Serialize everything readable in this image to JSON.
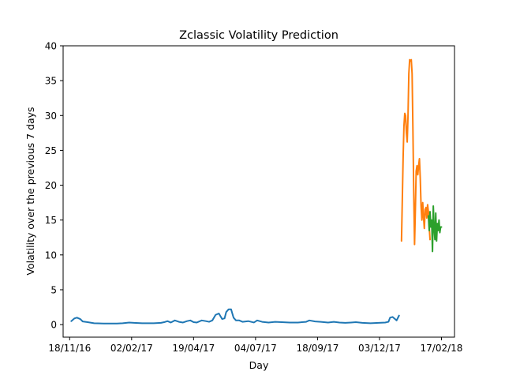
{
  "chart_data": {
    "type": "line",
    "title": "Zclassic Volatility Prediction",
    "xlabel": "Day",
    "ylabel": "Volatility over the previous 7 days",
    "xlim": [
      "2016-11-10",
      "2018-03-05"
    ],
    "ylim": [
      -1.8,
      40
    ],
    "x_ticks": [
      "2016-11-18",
      "2017-02-02",
      "2017-04-19",
      "2017-07-04",
      "2017-09-18",
      "2017-12-03",
      "2018-02-17"
    ],
    "x_tick_labels": [
      "18/11/16",
      "02/02/17",
      "19/04/17",
      "04/07/17",
      "18/09/17",
      "03/12/17",
      "17/02/18"
    ],
    "y_ticks": [
      0,
      5,
      10,
      15,
      20,
      25,
      30,
      35,
      40
    ],
    "y_tick_labels": [
      "0",
      "5",
      "10",
      "15",
      "20",
      "25",
      "30",
      "35",
      "40"
    ],
    "grid": false,
    "series": [
      {
        "color": "#1f77b4",
        "points": [
          [
            "2016-11-20",
            0.5
          ],
          [
            "2016-11-24",
            0.9
          ],
          [
            "2016-11-27",
            1.0
          ],
          [
            "2016-12-01",
            0.8
          ],
          [
            "2016-12-04",
            0.45
          ],
          [
            "2016-12-10",
            0.35
          ],
          [
            "2016-12-18",
            0.2
          ],
          [
            "2016-12-30",
            0.15
          ],
          [
            "2017-01-15",
            0.15
          ],
          [
            "2017-01-22",
            0.2
          ],
          [
            "2017-01-30",
            0.3
          ],
          [
            "2017-02-05",
            0.25
          ],
          [
            "2017-02-15",
            0.2
          ],
          [
            "2017-03-01",
            0.2
          ],
          [
            "2017-03-10",
            0.25
          ],
          [
            "2017-03-14",
            0.35
          ],
          [
            "2017-03-18",
            0.5
          ],
          [
            "2017-03-22",
            0.3
          ],
          [
            "2017-03-27",
            0.6
          ],
          [
            "2017-04-01",
            0.4
          ],
          [
            "2017-04-06",
            0.3
          ],
          [
            "2017-04-11",
            0.5
          ],
          [
            "2017-04-15",
            0.6
          ],
          [
            "2017-04-19",
            0.35
          ],
          [
            "2017-04-23",
            0.3
          ],
          [
            "2017-04-29",
            0.6
          ],
          [
            "2017-05-04",
            0.5
          ],
          [
            "2017-05-08",
            0.4
          ],
          [
            "2017-05-12",
            0.6
          ],
          [
            "2017-05-16",
            1.4
          ],
          [
            "2017-05-20",
            1.6
          ],
          [
            "2017-05-24",
            0.8
          ],
          [
            "2017-05-27",
            0.9
          ],
          [
            "2017-05-29",
            1.8
          ],
          [
            "2017-06-01",
            2.2
          ],
          [
            "2017-06-04",
            2.2
          ],
          [
            "2017-06-07",
            1.0
          ],
          [
            "2017-06-10",
            0.6
          ],
          [
            "2017-06-14",
            0.6
          ],
          [
            "2017-06-18",
            0.4
          ],
          [
            "2017-06-25",
            0.5
          ],
          [
            "2017-07-02",
            0.3
          ],
          [
            "2017-07-06",
            0.6
          ],
          [
            "2017-07-12",
            0.4
          ],
          [
            "2017-07-20",
            0.3
          ],
          [
            "2017-07-28",
            0.4
          ],
          [
            "2017-08-05",
            0.35
          ],
          [
            "2017-08-15",
            0.3
          ],
          [
            "2017-08-25",
            0.3
          ],
          [
            "2017-09-04",
            0.4
          ],
          [
            "2017-09-08",
            0.6
          ],
          [
            "2017-09-15",
            0.45
          ],
          [
            "2017-09-22",
            0.4
          ],
          [
            "2017-10-01",
            0.3
          ],
          [
            "2017-10-08",
            0.4
          ],
          [
            "2017-10-15",
            0.3
          ],
          [
            "2017-10-22",
            0.25
          ],
          [
            "2017-10-29",
            0.3
          ],
          [
            "2017-11-04",
            0.35
          ],
          [
            "2017-11-12",
            0.25
          ],
          [
            "2017-11-22",
            0.2
          ],
          [
            "2017-12-02",
            0.25
          ],
          [
            "2017-12-10",
            0.3
          ],
          [
            "2017-12-14",
            0.4
          ],
          [
            "2017-12-16",
            1.0
          ],
          [
            "2017-12-19",
            1.1
          ],
          [
            "2017-12-22",
            0.8
          ],
          [
            "2017-12-24",
            0.6
          ],
          [
            "2017-12-27",
            1.3
          ]
        ]
      },
      {
        "color": "#ff7f0e",
        "points": [
          [
            "2017-12-30",
            12.0
          ],
          [
            "2017-12-31",
            18.0
          ],
          [
            "2018-01-01",
            24.0
          ],
          [
            "2018-01-02",
            28.5
          ],
          [
            "2018-01-03",
            30.3
          ],
          [
            "2018-01-04",
            30.0
          ],
          [
            "2018-01-05",
            27.5
          ],
          [
            "2018-01-06",
            26.2
          ],
          [
            "2018-01-07",
            30.0
          ],
          [
            "2018-01-08",
            36.0
          ],
          [
            "2018-01-09",
            38.0
          ],
          [
            "2018-01-10",
            37.8
          ],
          [
            "2018-01-11",
            38.0
          ],
          [
            "2018-01-12",
            36.0
          ],
          [
            "2018-01-13",
            28.0
          ],
          [
            "2018-01-14",
            19.0
          ],
          [
            "2018-01-15",
            11.5
          ],
          [
            "2018-01-16",
            16.5
          ],
          [
            "2018-01-17",
            22.0
          ],
          [
            "2018-01-18",
            22.8
          ],
          [
            "2018-01-19",
            21.5
          ],
          [
            "2018-01-20",
            22.8
          ],
          [
            "2018-01-21",
            23.8
          ],
          [
            "2018-01-22",
            21.0
          ],
          [
            "2018-01-23",
            17.0
          ],
          [
            "2018-01-24",
            15.0
          ],
          [
            "2018-01-25",
            17.5
          ],
          [
            "2018-01-26",
            15.5
          ],
          [
            "2018-01-27",
            13.8
          ],
          [
            "2018-01-28",
            16.5
          ],
          [
            "2018-01-29",
            16.8
          ],
          [
            "2018-01-30",
            15.3
          ],
          [
            "2018-01-31",
            17.2
          ],
          [
            "2018-02-01",
            16.2
          ],
          [
            "2018-02-02",
            14.0
          ],
          [
            "2018-02-03",
            12.2
          ]
        ]
      },
      {
        "color": "#2ca02c",
        "points": [
          [
            "2018-02-01",
            15.6
          ],
          [
            "2018-02-02",
            13.5
          ],
          [
            "2018-02-03",
            16.2
          ],
          [
            "2018-02-04",
            14.0
          ],
          [
            "2018-02-05",
            15.0
          ],
          [
            "2018-02-06",
            10.5
          ],
          [
            "2018-02-07",
            17.0
          ],
          [
            "2018-02-08",
            13.8
          ],
          [
            "2018-02-09",
            12.2
          ],
          [
            "2018-02-10",
            16.0
          ],
          [
            "2018-02-11",
            12.0
          ],
          [
            "2018-02-12",
            14.5
          ],
          [
            "2018-02-13",
            13.5
          ],
          [
            "2018-02-14",
            15.0
          ],
          [
            "2018-02-15",
            13.2
          ],
          [
            "2018-02-16",
            14.0
          ],
          [
            "2018-02-17",
            14.0
          ]
        ]
      }
    ]
  }
}
